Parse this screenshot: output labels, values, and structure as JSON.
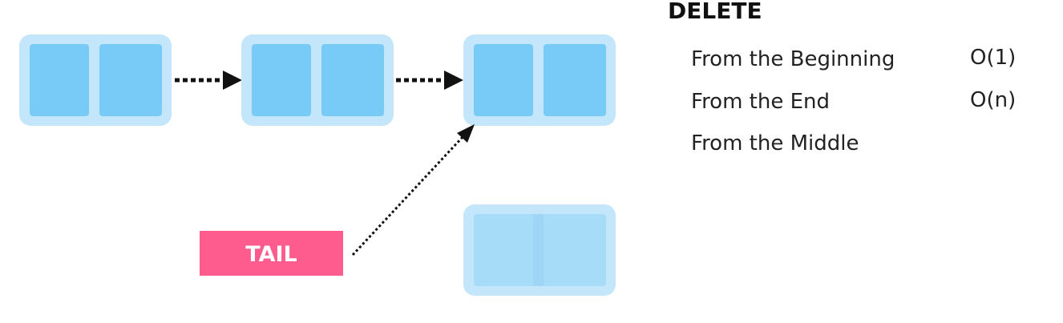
{
  "tail_label": "TAIL",
  "section_title": "DELETE",
  "operations": [
    {
      "label": "From the Beginning",
      "complexity": "O(1)"
    },
    {
      "label": "From the End",
      "complexity": "O(n)"
    },
    {
      "label": "From the Middle",
      "complexity": ""
    }
  ],
  "colors": {
    "node_outer": "#c3e6fb",
    "node_cell": "#78cbf6",
    "node_faded": "#a7dcf8",
    "tail": "#fe5b8e"
  }
}
